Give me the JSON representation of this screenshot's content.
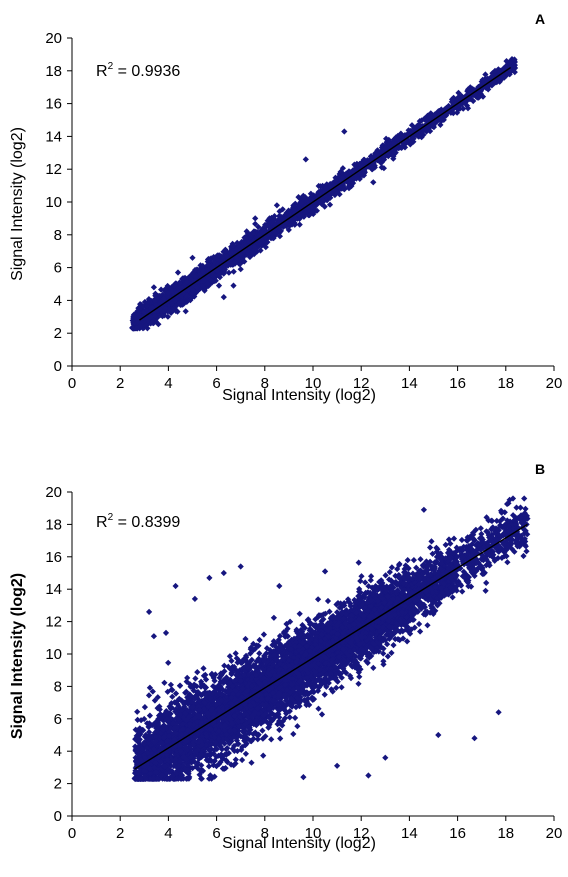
{
  "colors": {
    "marker": "#16167f",
    "fit_line": "#000000",
    "axis": "#000000"
  },
  "chart_data": [
    {
      "type": "scatter",
      "panel_label": "A",
      "annotation": "0.9936",
      "annotation_prefix": "R",
      "annotation_sup": "2",
      "annotation_eq": " = ",
      "xlabel": "Signal Intensity (log2)",
      "ylabel": "Signal Intensity (log2)",
      "ylabel_bold": false,
      "xlim": [
        0,
        20
      ],
      "ylim": [
        0,
        20
      ],
      "xticks": [
        "0",
        "2",
        "4",
        "6",
        "8",
        "10",
        "12",
        "14",
        "16",
        "18",
        "20"
      ],
      "yticks": [
        "0",
        "2",
        "4",
        "6",
        "8",
        "10",
        "12",
        "14",
        "16",
        "18",
        "20"
      ],
      "grid": false,
      "trendline": {
        "x": [
          2.8,
          18.2
        ],
        "y": [
          2.8,
          18.2
        ]
      },
      "point_cloud": {
        "n": 2600,
        "x_range": [
          2.5,
          18.4
        ],
        "residual_sd": 0.32,
        "x_weights": [
          [
            2.5,
            4,
            1.0
          ],
          [
            4,
            6,
            1.3
          ],
          [
            6,
            8,
            1.0
          ],
          [
            8,
            10,
            0.7
          ],
          [
            10,
            12,
            0.55
          ],
          [
            12,
            14,
            0.5
          ],
          [
            14,
            16,
            0.45
          ],
          [
            16,
            18.4,
            0.35
          ]
        ],
        "outliers": [
          [
            11.3,
            14.3
          ],
          [
            9.7,
            12.6
          ],
          [
            4.6,
            4.5
          ],
          [
            5.0,
            6.6
          ],
          [
            5.5,
            4.6
          ],
          [
            6.3,
            4.2
          ],
          [
            6.7,
            4.9
          ],
          [
            7.0,
            5.9
          ],
          [
            4.4,
            5.7
          ],
          [
            8.5,
            9.8
          ],
          [
            9.4,
            10.3
          ],
          [
            7.6,
            9.0
          ],
          [
            6.1,
            4.9
          ],
          [
            12.5,
            11.2
          ],
          [
            3.4,
            4.8
          ]
        ]
      }
    },
    {
      "type": "scatter",
      "panel_label": "B",
      "annotation": "0.8399",
      "annotation_prefix": "R",
      "annotation_sup": "2",
      "annotation_eq": " = ",
      "xlabel": "Signal Intensity (log2)",
      "ylabel": "Signal Intensity (log2)",
      "ylabel_bold": true,
      "xlim": [
        0,
        20
      ],
      "ylim": [
        0,
        20
      ],
      "xticks": [
        "0",
        "2",
        "4",
        "6",
        "8",
        "10",
        "12",
        "14",
        "16",
        "18",
        "20"
      ],
      "yticks": [
        "0",
        "2",
        "4",
        "6",
        "8",
        "10",
        "12",
        "14",
        "16",
        "18",
        "20"
      ],
      "grid": false,
      "trendline": {
        "x": [
          2.6,
          18.9
        ],
        "y": [
          2.9,
          18.0
        ]
      },
      "point_cloud": {
        "n": 6500,
        "x_range": [
          2.6,
          18.9
        ],
        "residual_sd": 1.15,
        "x_weights": [
          [
            2.6,
            4,
            0.9
          ],
          [
            4,
            6,
            1.1
          ],
          [
            6,
            8,
            1.2
          ],
          [
            8,
            10,
            1.3
          ],
          [
            10,
            12,
            1.2
          ],
          [
            12,
            14,
            1.0
          ],
          [
            14,
            16,
            0.6
          ],
          [
            16,
            18.9,
            0.3
          ]
        ],
        "outliers": [
          [
            4.3,
            14.2
          ],
          [
            5.7,
            14.7
          ],
          [
            7.0,
            15.4
          ],
          [
            6.3,
            15.0
          ],
          [
            3.9,
            11.3
          ],
          [
            3.4,
            11.1
          ],
          [
            12.3,
            2.5
          ],
          [
            9.6,
            2.4
          ],
          [
            17.7,
            6.4
          ],
          [
            15.2,
            5.0
          ],
          [
            16.7,
            4.8
          ],
          [
            14.6,
            18.9
          ],
          [
            17.4,
            17.0
          ],
          [
            13.0,
            3.6
          ],
          [
            11.0,
            3.1
          ],
          [
            10.5,
            15.1
          ],
          [
            8.6,
            14.2
          ],
          [
            3.2,
            12.6
          ],
          [
            5.1,
            13.4
          ],
          [
            16.3,
            14.7
          ]
        ]
      }
    }
  ]
}
